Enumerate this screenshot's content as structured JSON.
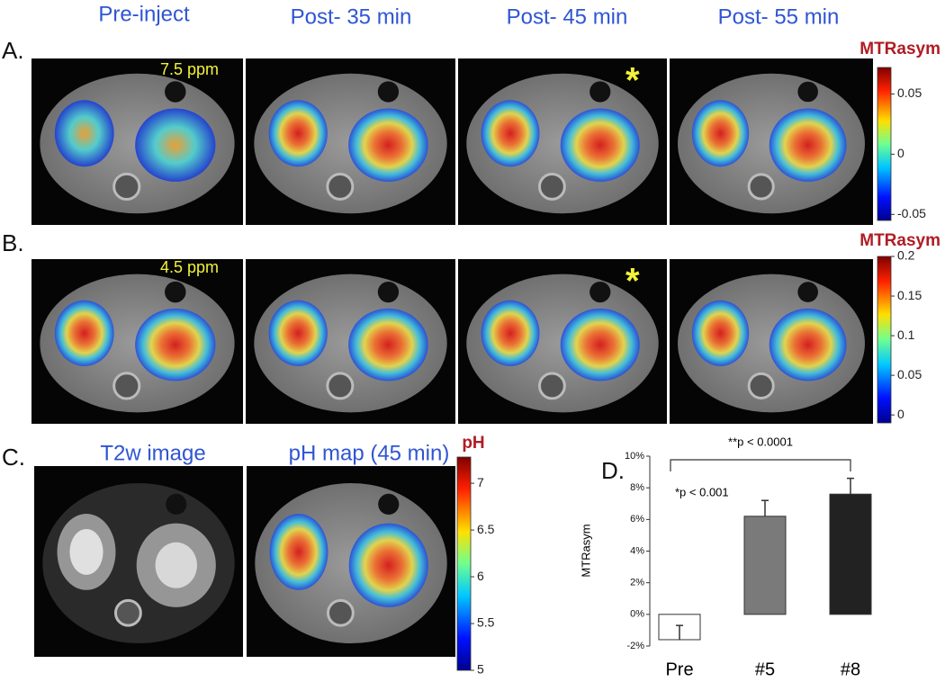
{
  "headers": [
    "Pre-inject",
    "Post- 35 min",
    "Post- 45 min",
    "Post- 55 min"
  ],
  "rows": [
    {
      "label": "A.",
      "ppm": "7.5 ppm",
      "marker": "*"
    },
    {
      "label": "B.",
      "ppm": "4.5 ppm",
      "marker": "*"
    },
    {
      "label": "C.",
      "left_title": "T2w image",
      "right_title": "pH map (45 min)"
    }
  ],
  "colorbars": [
    {
      "title": "MTRasym",
      "lim": [
        -0.055,
        0.072
      ],
      "ticks": [
        0.05,
        0,
        -0.05
      ]
    },
    {
      "title": "MTRasym",
      "lim": [
        -0.01,
        0.2
      ],
      "ticks": [
        0.2,
        0.15,
        0.1,
        0.05,
        0
      ]
    },
    {
      "title": "pH",
      "lim": [
        5,
        7.28
      ],
      "ticks": [
        7,
        6.5,
        6,
        5.5,
        5
      ]
    }
  ],
  "chart_data": {
    "type": "bar",
    "label": "D.",
    "ylabel": "MTRasym",
    "categories": [
      "Pre",
      "#5",
      "#8"
    ],
    "values": [
      -1.6,
      6.2,
      7.6
    ],
    "errors": [
      0.9,
      1.0,
      1.0
    ],
    "colors": [
      "#ffffff",
      "#7a7a7a",
      "#222222"
    ],
    "ylim": [
      -2,
      10
    ],
    "yticks": [
      {
        "value": -2,
        "label": "-2%"
      },
      {
        "value": 0,
        "label": "0%"
      },
      {
        "value": 2,
        "label": "2%"
      },
      {
        "value": 4,
        "label": "4%"
      },
      {
        "value": 6,
        "label": "6%"
      },
      {
        "value": 8,
        "label": "8%"
      },
      {
        "value": 10,
        "label": "10%"
      }
    ],
    "annotations": [
      "**p < 0.0001",
      "*p < 0.001"
    ]
  }
}
